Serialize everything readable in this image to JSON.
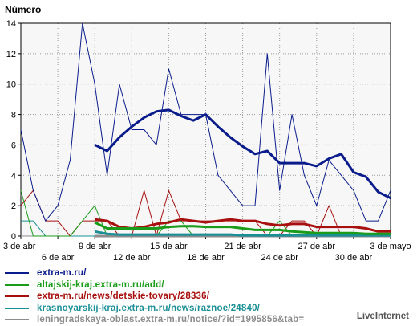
{
  "chart_data": {
    "type": "line",
    "ylabel": "Número",
    "ylim": [
      0,
      14
    ],
    "yticks": [
      0,
      2,
      4,
      6,
      8,
      10,
      12,
      14
    ],
    "grid": true,
    "legend_position": "bottom",
    "x_first_label_row": [
      "3 de abr",
      "9 de abr",
      "15 de abr",
      "21 de abr",
      "27 de abr",
      "3 de mayo"
    ],
    "x_second_label_row": [
      "6 de abr",
      "12 de abr",
      "18 de abr",
      "24 de abr",
      "30 de abr"
    ],
    "x": [
      "03-abr",
      "04-abr",
      "05-abr",
      "06-abr",
      "07-abr",
      "08-abr",
      "09-abr",
      "10-abr",
      "11-abr",
      "12-abr",
      "13-abr",
      "14-abr",
      "15-abr",
      "16-abr",
      "17-abr",
      "18-abr",
      "19-abr",
      "20-abr",
      "21-abr",
      "22-abr",
      "23-abr",
      "24-abr",
      "25-abr",
      "26-abr",
      "27-abr",
      "28-abr",
      "29-abr",
      "30-abr",
      "01-may",
      "02-may",
      "03-may"
    ],
    "series": [
      {
        "name": "extra-m.ru/",
        "color": "#0a1c8c",
        "values": [
          7,
          3,
          1,
          2,
          5,
          14,
          10,
          4,
          10,
          7,
          7,
          6,
          11,
          8,
          8,
          8,
          4,
          3,
          2,
          2,
          12,
          3,
          8,
          4,
          2,
          5,
          4,
          3,
          1,
          1,
          3
        ],
        "average": [
          null,
          null,
          null,
          null,
          null,
          null,
          6.0,
          5.6,
          6.5,
          7.2,
          7.8,
          8.2,
          8.3,
          7.9,
          7.6,
          8.0,
          7.2,
          6.5,
          5.9,
          5.4,
          5.6,
          4.8,
          4.8,
          4.8,
          4.6,
          5.1,
          5.4,
          4.2,
          3.9,
          2.9,
          2.5
        ]
      },
      {
        "name": "altajskij-kraj.extra-m.ru/add/",
        "color": "#1a9c1a",
        "values": [
          3,
          0,
          0,
          0,
          0,
          1,
          2,
          0,
          0,
          0,
          0,
          0,
          1,
          1,
          0,
          0,
          0,
          0,
          0,
          0,
          0,
          1,
          0,
          0,
          0,
          0,
          0,
          0,
          0,
          0,
          0
        ],
        "average": [
          null,
          null,
          null,
          null,
          null,
          null,
          0.9,
          0.5,
          0.5,
          0.5,
          0.5,
          0.5,
          0.6,
          0.65,
          0.65,
          0.6,
          0.6,
          0.6,
          0.5,
          0.4,
          0.4,
          0.4,
          0.3,
          0.25,
          0.2,
          0.2,
          0.2,
          0.2,
          0.15,
          0.15,
          0.15
        ]
      },
      {
        "name": "extra-m.ru/news/detskie-tovary/28336/",
        "color": "#a81010",
        "values": [
          2,
          3,
          1,
          1,
          0,
          1,
          1,
          1,
          0,
          0,
          3,
          0,
          3,
          1,
          1,
          1,
          1,
          1,
          1,
          1,
          0,
          0,
          1,
          1,
          0,
          2,
          0,
          0,
          0,
          0,
          0
        ],
        "average": [
          null,
          null,
          null,
          null,
          null,
          null,
          1.1,
          1.0,
          0.6,
          0.5,
          0.6,
          0.8,
          0.9,
          1.1,
          1.0,
          0.9,
          1.0,
          1.1,
          1.0,
          1.0,
          0.8,
          0.7,
          0.8,
          0.8,
          0.6,
          0.6,
          0.6,
          0.6,
          0.5,
          0.3,
          0.3
        ]
      },
      {
        "name": "krasnoyarskij-kraj.extra-m.ru/news/raznoe/24840/",
        "color": "#1a8f95",
        "values": [
          1,
          1,
          0,
          0,
          0,
          0,
          0,
          0,
          0,
          0,
          0,
          0,
          0,
          0,
          0,
          0,
          0,
          0,
          0,
          0,
          0,
          0,
          0,
          0,
          0,
          0,
          0,
          0,
          0,
          0,
          0
        ],
        "average": [
          null,
          null,
          null,
          null,
          null,
          null,
          0.3,
          0.15,
          0.1,
          0.1,
          0.1,
          0.1,
          0.1,
          0.1,
          0.1,
          0.1,
          0.1,
          0.1,
          0.05,
          0.05,
          0.05,
          0.05,
          0.05,
          0.05,
          0.05,
          0.05,
          0.05,
          0.05,
          0.05,
          0.05,
          0.05
        ]
      },
      {
        "name": "leningradskaya-oblast.extra-m.ru/notice/?id=1995856&tab=",
        "color": "#8c8c8c",
        "values": [
          0,
          0,
          0,
          0,
          0,
          0,
          0,
          0,
          0,
          0,
          0,
          0,
          0,
          0,
          0,
          0,
          0,
          0,
          0,
          0,
          0,
          0,
          0,
          0,
          0,
          0,
          0,
          0,
          0,
          0,
          0
        ],
        "average": [
          null,
          null,
          null,
          null,
          null,
          null,
          0.0,
          0.0,
          0.0,
          0.0,
          0.0,
          0.0,
          0.0,
          0.0,
          0.0,
          0.0,
          0.0,
          0.0,
          0.0,
          0.0,
          0.0,
          0.0,
          0.0,
          0.0,
          0.0,
          0.0,
          0.0,
          0.0,
          0.0,
          0.0,
          0.0
        ]
      }
    ]
  },
  "branding": "LiveInternet"
}
